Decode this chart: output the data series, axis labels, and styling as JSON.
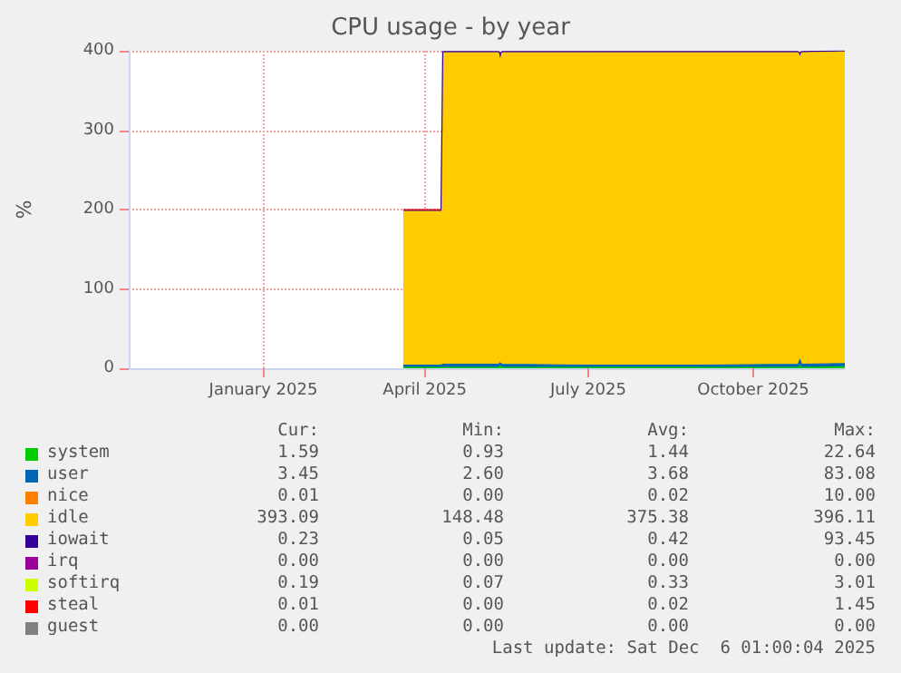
{
  "chart_data": {
    "type": "area",
    "stacked": true,
    "title": "CPU usage - by year",
    "ylabel": "%",
    "x": [
      "2025-03-20",
      "2025-04-10",
      "2025-04-11",
      "2025-05-12",
      "2025-05-13",
      "2025-05-14",
      "2025-07-01",
      "2025-09-01",
      "2025-10-26",
      "2025-10-27",
      "2025-10-28",
      "2025-11-21"
    ],
    "series": [
      {
        "name": "system",
        "color": "#00cc00",
        "values": [
          1,
          1,
          1,
          1,
          3,
          1,
          1,
          1,
          1,
          3,
          1,
          2
        ]
      },
      {
        "name": "user",
        "color": "#0066b3",
        "values": [
          3,
          3,
          4,
          4,
          4,
          4,
          3,
          3,
          4,
          8,
          4,
          4
        ]
      },
      {
        "name": "nice",
        "color": "#ff8000",
        "values": [
          null,
          null,
          null,
          null,
          null,
          null,
          null,
          null,
          null,
          null,
          null,
          null
        ]
      },
      {
        "name": "idle",
        "color": "#ffcc00",
        "values": [
          195,
          195,
          393,
          393,
          380,
          393,
          394,
          394,
          393,
          380,
          393,
          393
        ]
      },
      {
        "name": "iowait",
        "color": "#330099",
        "values": [
          0,
          0,
          1,
          1,
          10,
          1,
          1,
          1,
          1,
          6,
          1,
          1
        ]
      },
      {
        "name": "irq",
        "color": "#990099",
        "values": [
          null,
          null,
          null,
          null,
          null,
          null,
          null,
          null,
          null,
          null,
          null,
          null
        ]
      },
      {
        "name": "softirq",
        "color": "#ccff00",
        "values": [
          null,
          null,
          null,
          null,
          null,
          null,
          null,
          null,
          null,
          null,
          null,
          null
        ]
      },
      {
        "name": "steal",
        "color": "#ff0000",
        "values": [
          1,
          1,
          null,
          null,
          null,
          null,
          null,
          null,
          null,
          null,
          null,
          null
        ]
      },
      {
        "name": "guest",
        "color": "#808080",
        "values": [
          null,
          null,
          null,
          null,
          null,
          null,
          null,
          null,
          null,
          null,
          null,
          null
        ]
      }
    ],
    "xlim": [
      "2024-10-18",
      "2025-11-21"
    ],
    "xticks": [
      {
        "value": "2025-01-01",
        "label": "January 2025"
      },
      {
        "value": "2025-04-01",
        "label": "April 2025"
      },
      {
        "value": "2025-07-01",
        "label": "July 2025"
      },
      {
        "value": "2025-10-01",
        "label": "October 2025"
      }
    ],
    "ylim": [
      0,
      400
    ],
    "yticks": [
      0,
      100,
      200,
      300,
      400
    ],
    "grid": true,
    "legend": "bottom",
    "annotations": [
      "Cur:",
      "Min:",
      "Avg:",
      "Max:",
      "1.59",
      "0.93",
      "1.44",
      "22.64",
      "3.45",
      "2.60",
      "3.68",
      "83.08",
      "0.01",
      "0.00",
      "0.02",
      "10.00",
      "393.09",
      "148.48",
      "375.38",
      "396.11",
      "0.23",
      "0.05",
      "0.42",
      "93.45",
      "0.00",
      "0.00",
      "0.00",
      "0.00",
      "0.19",
      "0.07",
      "0.33",
      "3.01",
      "0.01",
      "0.00",
      "0.02",
      "1.45",
      "0.00",
      "0.00",
      "0.00",
      "0.00",
      "Last update: Sat Dec  6 01:00:04 2025"
    ]
  }
}
